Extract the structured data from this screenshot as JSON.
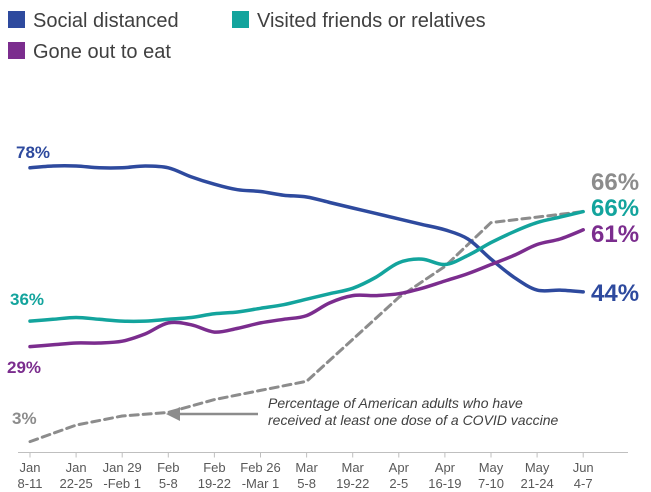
{
  "chart_data": {
    "type": "line",
    "categories": [
      [
        "Jan",
        "8-11"
      ],
      [
        "Jan",
        "22-25"
      ],
      [
        "Jan 29",
        "-Feb 1"
      ],
      [
        "Feb",
        "5-8"
      ],
      [
        "Feb",
        "19-22"
      ],
      [
        "Feb 26",
        "-Mar 1"
      ],
      [
        "Mar",
        "5-8"
      ],
      [
        "Mar",
        "19-22"
      ],
      [
        "Apr",
        "2-5"
      ],
      [
        "Apr",
        "16-19"
      ],
      [
        "May",
        "7-10"
      ],
      [
        "May",
        "21-24"
      ],
      [
        "Jun",
        "4-7"
      ]
    ],
    "series": [
      {
        "name": "Social distanced",
        "color": "#2e4a9e",
        "x": [
          0,
          0.5,
          1,
          1.5,
          2,
          2.5,
          3,
          3.5,
          4,
          4.5,
          5,
          5.5,
          6,
          6.5,
          7,
          7.5,
          8,
          8.5,
          9,
          9.5,
          10,
          10.5,
          11,
          11.5,
          12
        ],
        "values": [
          78,
          78.5,
          78.5,
          78,
          78,
          78.5,
          78,
          75.5,
          73.5,
          72,
          71.5,
          70.5,
          70,
          68.5,
          67,
          65.5,
          64,
          62.5,
          61,
          58.5,
          53,
          48,
          44.5,
          44.5,
          44
        ],
        "start_label": "78%",
        "end_label": "44%"
      },
      {
        "name": "Visited friends or relatives",
        "color": "#13a49d",
        "x": [
          0,
          0.5,
          1,
          1.5,
          2,
          2.5,
          3,
          3.5,
          4,
          4.5,
          5,
          5.5,
          6,
          6.5,
          7,
          7.5,
          8,
          8.5,
          9,
          9.5,
          10,
          10.5,
          11,
          11.5,
          12
        ],
        "values": [
          36,
          36.5,
          37,
          36.5,
          36,
          36,
          36.5,
          37,
          38,
          38.5,
          39.5,
          40.5,
          42,
          43.5,
          45,
          48,
          52,
          53,
          51.5,
          54,
          57.5,
          60.5,
          63,
          64.5,
          66
        ],
        "start_label": "36%",
        "end_label": "66%"
      },
      {
        "name": "Gone out to eat",
        "color": "#7b2d8e",
        "x": [
          0,
          0.5,
          1,
          1.5,
          2,
          2.5,
          3,
          3.5,
          4,
          4.5,
          5,
          5.5,
          6,
          6.5,
          7,
          7.5,
          8,
          8.5,
          9,
          9.5,
          10,
          10.5,
          11,
          11.5,
          12
        ],
        "values": [
          29,
          29.5,
          30,
          30,
          30.5,
          32.5,
          35.5,
          35,
          33,
          34,
          35.5,
          36.5,
          37.5,
          41,
          43,
          43,
          43.5,
          45,
          47,
          49,
          51.5,
          54,
          57,
          58.5,
          61
        ],
        "start_label": "29%",
        "end_label": "61%"
      },
      {
        "name": "Percentage of American adults who have received at least one dose of a COVID vaccine",
        "color": "#8c8c8c",
        "dashed": true,
        "x": [
          0,
          1,
          2,
          3,
          4,
          5,
          6,
          7,
          8,
          9,
          10,
          11,
          12
        ],
        "values": [
          3,
          7.5,
          10,
          11,
          14.5,
          17,
          19.5,
          31,
          42.5,
          51,
          63,
          64.5,
          66
        ],
        "start_label": "3%",
        "end_label": "66%"
      }
    ],
    "legend": [
      {
        "name": "Social distanced",
        "color": "#2e4a9e"
      },
      {
        "name": "Visited friends or relatives",
        "color": "#13a49d"
      },
      {
        "name": "Gone out to eat",
        "color": "#7b2d8e"
      }
    ],
    "legend_position": "top-left",
    "annotation": {
      "lines": [
        "Percentage of American adults who have",
        "received at least one dose of a COVID vaccine"
      ],
      "arrow": "left",
      "color": "#8c8c8c"
    },
    "ylim": [
      0,
      90
    ],
    "grid": false,
    "title": "",
    "xlabel": "",
    "ylabel": ""
  }
}
